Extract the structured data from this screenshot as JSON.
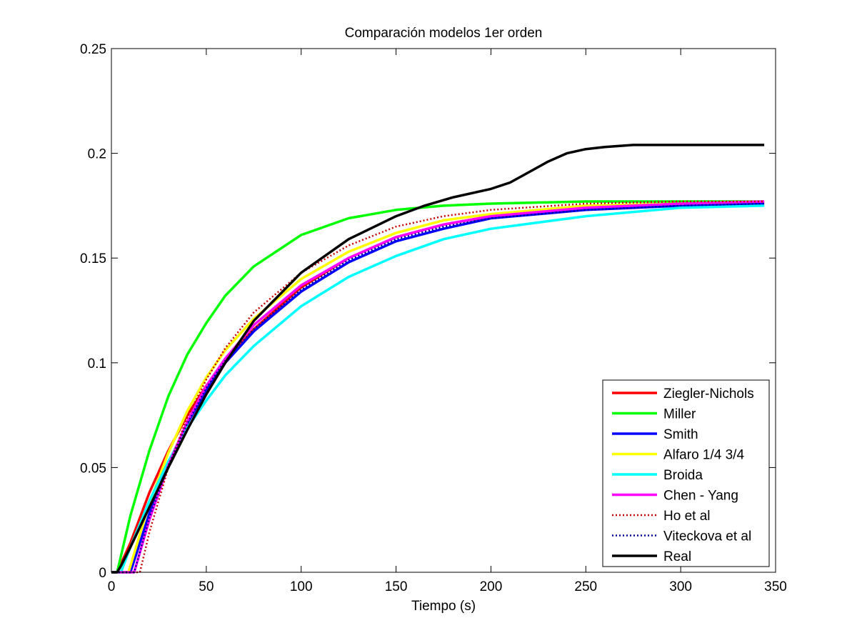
{
  "chart_data": {
    "type": "line",
    "title": "Comparación modelos 1er orden",
    "xlabel": "Tiempo (s)",
    "ylabel": "",
    "xlim": [
      0,
      350
    ],
    "ylim": [
      0,
      0.25
    ],
    "xticks": [
      0,
      50,
      100,
      150,
      200,
      250,
      300,
      350
    ],
    "xtick_labels": [
      "0",
      "50",
      "100",
      "150",
      "200",
      "250",
      "300",
      "350"
    ],
    "yticks": [
      0,
      0.05,
      0.1,
      0.15,
      0.2,
      0.25
    ],
    "ytick_labels": [
      "0",
      "0.05",
      "0.1",
      "0.15",
      "0.2",
      "0.25"
    ],
    "grid": false,
    "legend_position": "bottom-right",
    "series": [
      {
        "name": "Ziegler-Nichols",
        "color": "#ff0000",
        "style": "solid",
        "x": [
          0,
          3,
          10,
          20,
          30,
          40,
          50,
          60,
          75,
          100,
          125,
          150,
          175,
          200,
          250,
          300,
          344
        ],
        "y": [
          0,
          0,
          0.014,
          0.038,
          0.058,
          0.075,
          0.089,
          0.101,
          0.116,
          0.136,
          0.15,
          0.16,
          0.166,
          0.17,
          0.174,
          0.176,
          0.176
        ]
      },
      {
        "name": "Miller",
        "color": "#00ff00",
        "style": "solid",
        "x": [
          0,
          3,
          10,
          20,
          30,
          40,
          50,
          60,
          75,
          100,
          125,
          150,
          175,
          200,
          250,
          300,
          344
        ],
        "y": [
          0,
          0,
          0.027,
          0.058,
          0.084,
          0.104,
          0.119,
          0.132,
          0.146,
          0.161,
          0.169,
          0.173,
          0.175,
          0.176,
          0.177,
          0.177,
          0.177
        ]
      },
      {
        "name": "Smith",
        "color": "#0000ff",
        "style": "solid",
        "x": [
          0,
          10,
          20,
          30,
          40,
          50,
          60,
          75,
          100,
          125,
          150,
          175,
          200,
          250,
          300,
          344
        ],
        "y": [
          0,
          0,
          0.028,
          0.052,
          0.071,
          0.087,
          0.1,
          0.115,
          0.134,
          0.148,
          0.158,
          0.164,
          0.169,
          0.173,
          0.175,
          0.176
        ]
      },
      {
        "name": "Alfaro 1/4 3/4",
        "color": "#ffff00",
        "style": "solid",
        "x": [
          0,
          9,
          20,
          30,
          40,
          50,
          60,
          75,
          100,
          125,
          150,
          175,
          200,
          250,
          300,
          344
        ],
        "y": [
          0,
          0,
          0.033,
          0.057,
          0.077,
          0.093,
          0.106,
          0.121,
          0.14,
          0.153,
          0.162,
          0.168,
          0.171,
          0.175,
          0.176,
          0.177
        ]
      },
      {
        "name": "Broida",
        "color": "#00ffff",
        "style": "solid",
        "x": [
          0,
          5,
          10,
          20,
          30,
          40,
          50,
          60,
          75,
          100,
          125,
          150,
          175,
          200,
          250,
          300,
          344
        ],
        "y": [
          0,
          0,
          0.012,
          0.034,
          0.053,
          0.069,
          0.082,
          0.094,
          0.108,
          0.127,
          0.141,
          0.151,
          0.159,
          0.164,
          0.17,
          0.174,
          0.175
        ]
      },
      {
        "name": "Chen - Yang",
        "color": "#ff00ff",
        "style": "solid",
        "x": [
          0,
          12,
          20,
          30,
          40,
          50,
          60,
          75,
          100,
          125,
          150,
          175,
          200,
          250,
          300,
          344
        ],
        "y": [
          0,
          0,
          0.025,
          0.051,
          0.072,
          0.089,
          0.102,
          0.118,
          0.137,
          0.15,
          0.16,
          0.166,
          0.17,
          0.174,
          0.176,
          0.177
        ]
      },
      {
        "name": "Ho et al",
        "color": "#cc0000",
        "style": "dotted",
        "x": [
          0,
          15,
          20,
          30,
          40,
          50,
          60,
          75,
          100,
          125,
          150,
          175,
          200,
          250,
          300,
          344
        ],
        "y": [
          0,
          0,
          0.019,
          0.05,
          0.074,
          0.092,
          0.107,
          0.124,
          0.143,
          0.156,
          0.165,
          0.17,
          0.173,
          0.176,
          0.177,
          0.177
        ]
      },
      {
        "name": "Viteckova et al",
        "color": "#000099",
        "style": "dotted",
        "x": [
          0,
          12,
          20,
          30,
          40,
          50,
          60,
          75,
          100,
          125,
          150,
          175,
          200,
          250,
          300,
          344
        ],
        "y": [
          0,
          0,
          0.026,
          0.051,
          0.071,
          0.088,
          0.101,
          0.116,
          0.135,
          0.149,
          0.159,
          0.165,
          0.169,
          0.173,
          0.175,
          0.176
        ]
      },
      {
        "name": "Real",
        "color": "#000000",
        "style": "solid",
        "x": [
          0,
          3,
          5,
          10,
          20,
          30,
          40,
          50,
          60,
          75,
          100,
          125,
          150,
          165,
          180,
          200,
          210,
          220,
          230,
          240,
          250,
          260,
          275,
          290,
          300,
          344
        ],
        "y": [
          0,
          0,
          0.003,
          0.012,
          0.031,
          0.05,
          0.068,
          0.085,
          0.1,
          0.12,
          0.143,
          0.159,
          0.17,
          0.175,
          0.179,
          0.183,
          0.186,
          0.191,
          0.196,
          0.2,
          0.202,
          0.203,
          0.204,
          0.204,
          0.204,
          0.204
        ]
      }
    ]
  }
}
